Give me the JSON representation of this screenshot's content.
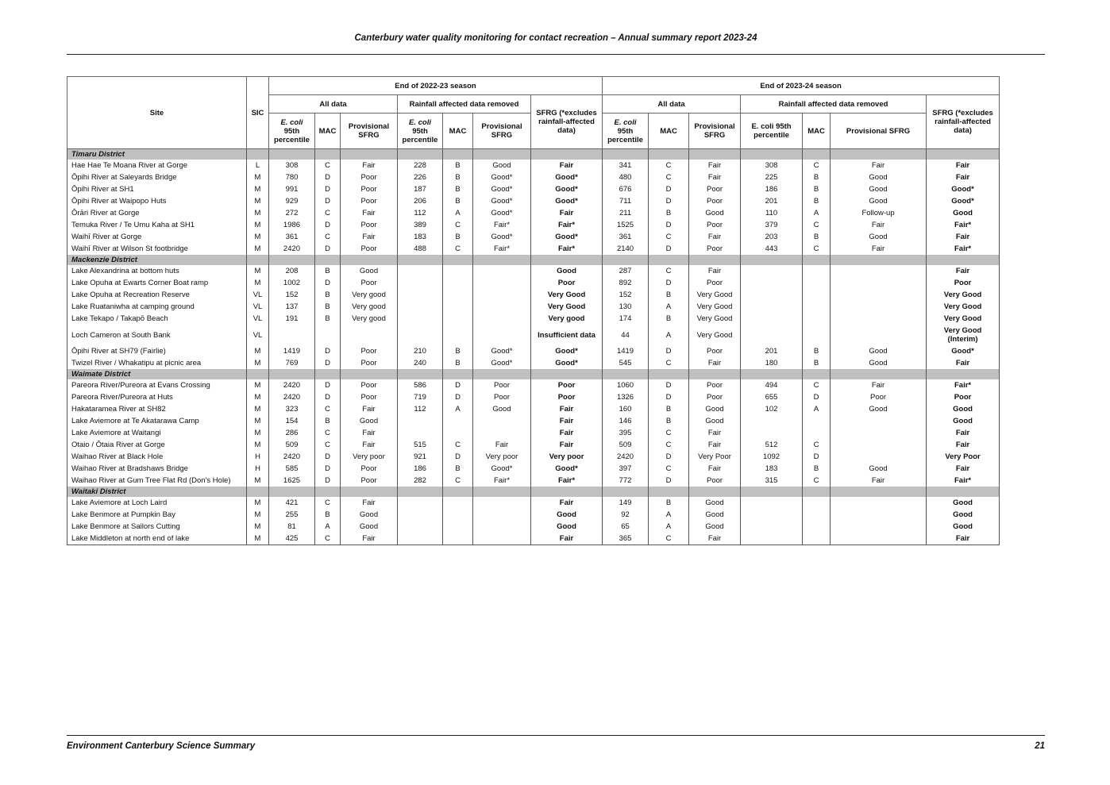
{
  "header": {
    "title": "Canterbury water quality monitoring for contact recreation – Annual summary report 2023-24"
  },
  "footer": {
    "left": "Environment Canterbury Science Summary",
    "page": "21"
  },
  "table": {
    "headers": {
      "site": "Site",
      "sic": "SIC",
      "season1": "End of 2022-23 season",
      "season2": "End of 2023-24 season",
      "all_data": "All data",
      "rainfall_removed": "Rainfall affected data removed",
      "sfrg": "SFRG (*excludes rainfall-affected data)",
      "ecoli": "E. coli",
      "p95": "95th percentile",
      "ecoli95": "E. coli 95th percentile",
      "mac": "MAC",
      "prov_sfrg": "Provisional SFRG"
    },
    "districts": [
      {
        "name": "Timaru District",
        "rows": [
          [
            "Hae Hae Te Moana River at Gorge",
            "L",
            "308",
            "C",
            "Fair",
            "228",
            "B",
            "Good",
            "Fair",
            "341",
            "C",
            "Fair",
            "308",
            "C",
            "Fair",
            "Fair"
          ],
          [
            "Ōpihi River at Saleyards Bridge",
            "M",
            "780",
            "D",
            "Poor",
            "226",
            "B",
            "Good*",
            "Good*",
            "480",
            "C",
            "Fair",
            "225",
            "B",
            "Good",
            "Fair"
          ],
          [
            "Ōpihi River at SH1",
            "M",
            "991",
            "D",
            "Poor",
            "187",
            "B",
            "Good*",
            "Good*",
            "676",
            "D",
            "Poor",
            "186",
            "B",
            "Good",
            "Good*"
          ],
          [
            "Ōpihi River at Waipopo Huts",
            "M",
            "929",
            "D",
            "Poor",
            "206",
            "B",
            "Good*",
            "Good*",
            "711",
            "D",
            "Poor",
            "201",
            "B",
            "Good",
            "Good*"
          ],
          [
            "Ōrāri River at Gorge",
            "M",
            "272",
            "C",
            "Fair",
            "112",
            "A",
            "Good*",
            "Fair",
            "211",
            "B",
            "Good",
            "110",
            "A",
            "Follow-up",
            "Good"
          ],
          [
            "Temuka River / Te Umu Kaha at SH1",
            "M",
            "1986",
            "D",
            "Poor",
            "389",
            "C",
            "Fair*",
            "Fair*",
            "1525",
            "D",
            "Poor",
            "379",
            "C",
            "Fair",
            "Fair*"
          ],
          [
            "Waihī River at Gorge",
            "M",
            "361",
            "C",
            "Fair",
            "183",
            "B",
            "Good*",
            "Good*",
            "361",
            "C",
            "Fair",
            "203",
            "B",
            "Good",
            "Fair"
          ],
          [
            "Waihī River at Wilson St footbridge",
            "M",
            "2420",
            "D",
            "Poor",
            "488",
            "C",
            "Fair*",
            "Fair*",
            "2140",
            "D",
            "Poor",
            "443",
            "C",
            "Fair",
            "Fair*"
          ]
        ]
      },
      {
        "name": "Mackenzie District",
        "rows": [
          [
            "Lake Alexandrina at bottom huts",
            "M",
            "208",
            "B",
            "Good",
            "",
            "",
            "",
            "Good",
            "287",
            "C",
            "Fair",
            "",
            "",
            "",
            "Fair"
          ],
          [
            "Lake Opuha at Ewarts Corner Boat ramp",
            "M",
            "1002",
            "D",
            "Poor",
            "",
            "",
            "",
            "Poor",
            "892",
            "D",
            "Poor",
            "",
            "",
            "",
            "Poor"
          ],
          [
            "Lake Opuha at Recreation Reserve",
            "VL",
            "152",
            "B",
            "Very good",
            "",
            "",
            "",
            "Very Good",
            "152",
            "B",
            "Very Good",
            "",
            "",
            "",
            "Very Good"
          ],
          [
            "Lake Ruataniwha at camping ground",
            "VL",
            "137",
            "B",
            "Very good",
            "",
            "",
            "",
            "Very Good",
            "130",
            "A",
            "Very Good",
            "",
            "",
            "",
            "Very Good"
          ],
          [
            "Lake Tekapo / Takapō Beach",
            "VL",
            "191",
            "B",
            "Very good",
            "",
            "",
            "",
            "Very good",
            "174",
            "B",
            "Very Good",
            "",
            "",
            "",
            "Very Good"
          ],
          [
            "Loch Cameron at South Bank",
            "VL",
            "",
            "",
            "",
            "",
            "",
            "",
            "Insufficient data",
            "44",
            "A",
            "Very Good",
            "",
            "",
            "",
            "Very Good (Interim)"
          ],
          [
            "Ōpihi River at SH79 (Fairlie)",
            "M",
            "1419",
            "D",
            "Poor",
            "210",
            "B",
            "Good*",
            "Good*",
            "1419",
            "D",
            "Poor",
            "201",
            "B",
            "Good",
            "Good*"
          ],
          [
            "Twizel River / Whakatipu at picnic area",
            "M",
            "769",
            "D",
            "Poor",
            "240",
            "B",
            "Good*",
            "Good*",
            "545",
            "C",
            "Fair",
            "180",
            "B",
            "Good",
            "Fair"
          ]
        ]
      },
      {
        "name": "Waimate District",
        "rows": [
          [
            "Pareora River/Pureora at Evans Crossing",
            "M",
            "2420",
            "D",
            "Poor",
            "586",
            "D",
            "Poor",
            "Poor",
            "1060",
            "D",
            "Poor",
            "494",
            "C",
            "Fair",
            "Fair*"
          ],
          [
            "Pareora River/Pureora at Huts",
            "M",
            "2420",
            "D",
            "Poor",
            "719",
            "D",
            "Poor",
            "Poor",
            "1326",
            "D",
            "Poor",
            "655",
            "D",
            "Poor",
            "Poor"
          ],
          [
            "Hakataramea River at SH82",
            "M",
            "323",
            "C",
            "Fair",
            "112",
            "A",
            "Good",
            "Fair",
            "160",
            "B",
            "Good",
            "102",
            "A",
            "Good",
            "Good"
          ],
          [
            "Lake Aviemore at Te Akatarawa Camp",
            "M",
            "154",
            "B",
            "Good",
            "",
            "",
            "",
            "Fair",
            "146",
            "B",
            "Good",
            "",
            "",
            "",
            "Good"
          ],
          [
            "Lake Aviemore at Waitangi",
            "M",
            "286",
            "C",
            "Fair",
            "",
            "",
            "",
            "Fair",
            "395",
            "C",
            "Fair",
            "",
            "",
            "",
            "Fair"
          ],
          [
            "Otaio / Ōtaia River at Gorge",
            "M",
            "509",
            "C",
            "Fair",
            "515",
            "C",
            "Fair",
            "Fair",
            "509",
            "C",
            "Fair",
            "512",
            "C",
            "",
            "Fair"
          ],
          [
            "Waihao River at Black Hole",
            "H",
            "2420",
            "D",
            "Very poor",
            "921",
            "D",
            "Very poor",
            "Very poor",
            "2420",
            "D",
            "Very Poor",
            "1092",
            "D",
            "",
            "Very Poor"
          ],
          [
            "Waihao River at Bradshaws Bridge",
            "H",
            "585",
            "D",
            "Poor",
            "186",
            "B",
            "Good*",
            "Good*",
            "397",
            "C",
            "Fair",
            "183",
            "B",
            "Good",
            "Fair"
          ],
          [
            "Waihao River at Gum Tree Flat Rd (Don's Hole)",
            "M",
            "1625",
            "D",
            "Poor",
            "282",
            "C",
            "Fair*",
            "Fair*",
            "772",
            "D",
            "Poor",
            "315",
            "C",
            "Fair",
            "Fair*"
          ]
        ]
      },
      {
        "name": "Waitaki District",
        "rows": [
          [
            "Lake Aviemore at Loch Laird",
            "M",
            "421",
            "C",
            "Fair",
            "",
            "",
            "",
            "Fair",
            "149",
            "B",
            "Good",
            "",
            "",
            "",
            "Good"
          ],
          [
            "Lake Benmore at Pumpkin Bay",
            "M",
            "255",
            "B",
            "Good",
            "",
            "",
            "",
            "Good",
            "92",
            "A",
            "Good",
            "",
            "",
            "",
            "Good"
          ],
          [
            "Lake Benmore at Sailors Cutting",
            "M",
            "81",
            "A",
            "Good",
            "",
            "",
            "",
            "Good",
            "65",
            "A",
            "Good",
            "",
            "",
            "",
            "Good"
          ],
          [
            "Lake Middleton at north end of lake",
            "M",
            "425",
            "C",
            "Fair",
            "",
            "",
            "",
            "Fair",
            "365",
            "C",
            "Fair",
            "",
            "",
            "",
            "Fair"
          ]
        ]
      }
    ]
  }
}
